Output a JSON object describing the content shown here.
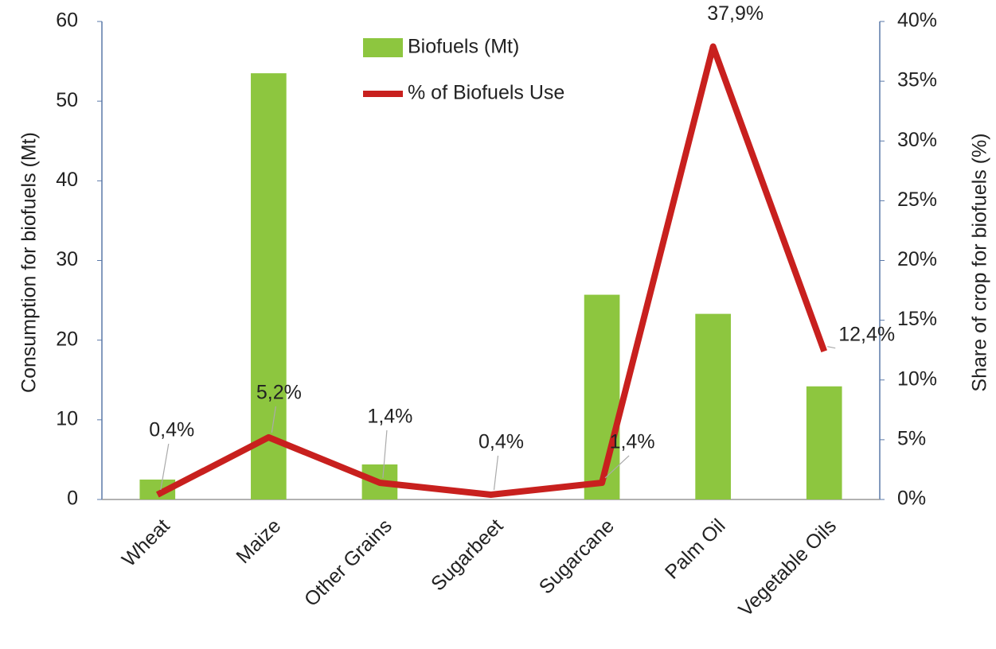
{
  "chart_data": {
    "type": "combo",
    "categories": [
      "Wheat",
      "Maize",
      "Other Grains",
      "Sugarbeet",
      "Sugarcane",
      "Palm Oil",
      "Vegetable Oils"
    ],
    "series": [
      {
        "name": "Biofuels (Mt)",
        "type": "bar",
        "color": "#8dc63f",
        "values": [
          2.5,
          53.5,
          4.4,
          0,
          25.7,
          23.3,
          14.2
        ]
      },
      {
        "name": "% of Biofuels Use",
        "type": "line",
        "axis": "y2",
        "color": "#c8201e",
        "values": [
          0.4,
          5.2,
          1.4,
          0.4,
          1.4,
          37.9,
          12.4
        ],
        "value_labels": [
          "0,4%",
          "5,2%",
          "1,4%",
          "0,4%",
          "1,4%",
          "37,9%",
          "12,4%"
        ]
      }
    ],
    "ylabel": "Consumption for biofuels (Mt)",
    "y2label": "Share of crop for biofuels (%)",
    "ylim": [
      0,
      60
    ],
    "yticks": [
      0,
      10,
      20,
      30,
      40,
      50,
      60
    ],
    "y2lim": [
      0,
      40
    ],
    "y2ticks": [
      {
        "value": 0,
        "label": "0%"
      },
      {
        "value": 5,
        "label": "5%"
      },
      {
        "value": 10,
        "label": "10%"
      },
      {
        "value": 15,
        "label": "15%"
      },
      {
        "value": 20,
        "label": "20%"
      },
      {
        "value": 25,
        "label": "25%"
      },
      {
        "value": 30,
        "label": "30%"
      },
      {
        "value": 35,
        "label": "35%"
      },
      {
        "value": 40,
        "label": "40%"
      }
    ],
    "legend": "top"
  }
}
